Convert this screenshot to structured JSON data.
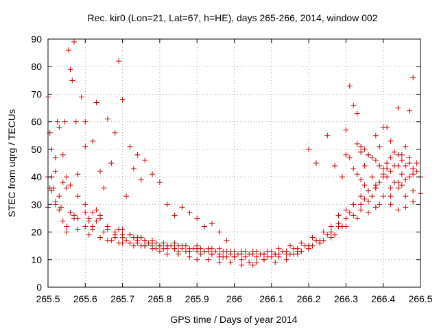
{
  "chart_data": {
    "type": "scatter",
    "title": "Rec. kir0 (Lon=21, Lat=67, h=HE), days 265-266, 2014, window 002",
    "xlabel": "GPS time / Days of year 2014",
    "ylabel": "STEC from uqrg / TECUs",
    "xlim": [
      265.5,
      266.5
    ],
    "ylim": [
      0,
      90
    ],
    "x_ticks": [
      265.5,
      265.6,
      265.7,
      265.8,
      265.9,
      266.0,
      266.1,
      266.2,
      266.3,
      266.4,
      266.5
    ],
    "x_tick_labels": [
      "265.5",
      "265.6",
      "265.7",
      "265.8",
      "265.9",
      "266",
      "266.1",
      "266.2",
      "266.3",
      "266.4",
      "266.5"
    ],
    "y_ticks": [
      0,
      10,
      20,
      30,
      40,
      50,
      60,
      70,
      80,
      90
    ],
    "y_tick_labels": [
      "0",
      "10",
      "20",
      "30",
      "40",
      "50",
      "60",
      "70",
      "80",
      "90"
    ],
    "grid": true,
    "marker": "+",
    "color": "#cc0000",
    "series": [
      {
        "name": "STEC",
        "x": [
          265.5,
          265.5,
          265.505,
          265.51,
          265.51,
          265.515,
          265.52,
          265.52,
          265.525,
          265.53,
          265.53,
          265.535,
          265.54,
          265.545,
          265.55,
          265.55,
          265.555,
          265.56,
          265.565,
          265.57,
          265.575,
          265.58,
          265.59,
          265.6,
          265.6,
          265.61,
          265.62,
          265.63,
          265.64,
          265.65,
          265.66,
          265.67,
          265.68,
          265.69,
          265.7,
          265.71,
          265.72,
          265.73,
          265.74,
          265.75,
          265.76,
          265.78,
          265.8,
          265.82,
          265.84,
          265.86,
          265.88,
          265.9,
          265.92,
          265.94,
          265.96,
          265.98,
          265.5,
          265.505,
          265.51,
          265.52,
          265.53,
          265.54,
          265.55,
          265.56,
          265.57,
          265.58,
          265.6,
          265.61,
          265.62,
          265.63,
          265.64,
          265.66,
          265.68,
          265.7,
          265.72,
          265.74,
          265.76,
          265.78,
          265.8,
          265.82,
          265.85,
          265.88,
          265.9,
          265.93,
          265.96,
          265.99,
          266.02,
          266.05,
          266.08,
          266.11,
          266.14,
          266.17,
          266.2,
          266.23,
          266.26,
          266.28,
          266.3,
          266.32,
          266.34,
          266.36,
          266.38,
          266.4,
          266.42,
          266.44,
          266.46,
          266.48,
          265.52,
          265.54,
          265.56,
          265.58,
          265.6,
          265.62,
          265.64,
          265.66,
          265.68,
          265.7,
          265.72,
          265.74,
          265.76,
          265.78,
          265.8,
          265.82,
          265.84,
          265.86,
          265.88,
          265.9,
          265.92,
          265.94,
          265.96,
          265.98,
          266.0,
          266.02,
          266.04,
          266.06,
          266.08,
          266.1,
          266.12,
          266.14,
          266.16,
          266.18,
          266.2,
          266.22,
          266.24,
          266.26,
          266.28,
          266.3,
          266.32,
          266.34,
          266.36,
          266.38,
          266.4,
          266.42,
          266.44,
          266.46,
          266.48,
          266.5,
          265.55,
          265.58,
          265.61,
          265.64,
          265.67,
          265.7,
          265.73,
          265.76,
          265.79,
          265.82,
          265.85,
          265.88,
          265.91,
          265.94,
          265.97,
          266.0,
          266.03,
          266.06,
          266.09,
          266.12,
          266.15,
          266.18,
          266.21,
          266.24,
          266.27,
          266.3,
          266.33,
          266.36,
          266.39,
          266.42,
          266.45,
          265.57,
          265.6,
          265.63,
          265.66,
          265.69,
          265.72,
          265.75,
          265.78,
          265.81,
          265.84,
          265.87,
          265.9,
          265.93,
          265.96,
          265.99,
          266.02,
          266.05,
          266.08,
          266.11,
          266.14,
          266.17,
          266.2,
          266.23,
          266.26,
          266.29,
          266.32,
          266.35,
          266.38,
          266.41,
          266.44,
          266.47,
          265.62,
          265.65,
          265.68,
          265.71,
          265.74,
          265.77,
          265.8,
          265.83,
          265.86,
          265.89,
          265.92,
          265.95,
          265.98,
          266.01,
          266.04,
          266.07,
          266.1,
          266.13,
          266.16,
          266.19,
          266.22,
          266.25,
          266.28,
          266.31,
          266.34,
          265.66,
          265.69,
          265.72,
          265.75,
          265.78,
          265.81,
          265.84,
          265.87,
          265.9,
          265.93,
          265.96,
          265.99,
          266.02,
          266.05,
          266.08,
          266.11,
          266.14,
          266.17,
          266.2,
          266.23,
          266.26,
          265.7,
          265.73,
          265.76,
          265.79,
          265.82,
          265.85,
          265.88,
          265.91,
          265.94,
          265.97,
          266.0,
          266.03,
          266.06,
          266.09,
          266.12,
          266.15,
          266.18,
          266.21,
          266.2,
          266.22,
          266.25,
          266.27,
          266.29,
          266.3,
          266.31,
          266.32,
          266.33,
          266.34,
          266.35,
          266.36,
          266.37,
          266.38,
          266.39,
          266.4,
          266.41,
          266.42,
          266.43,
          266.44,
          266.45,
          266.46,
          266.47,
          266.48,
          266.49,
          266.5,
          266.3,
          266.31,
          266.32,
          266.33,
          266.34,
          266.35,
          266.36,
          266.37,
          266.38,
          266.39,
          266.4,
          266.41,
          266.42,
          266.43,
          266.44,
          266.45,
          266.46,
          266.47,
          266.48,
          266.49,
          266.33,
          266.34,
          266.35,
          266.36,
          266.37,
          266.38,
          266.39,
          266.4,
          266.41,
          266.42,
          266.43,
          266.44,
          266.45,
          266.46,
          266.47,
          266.48
        ],
        "y": [
          69,
          40,
          56,
          50,
          40,
          36,
          47,
          30,
          60,
          58,
          33,
          29,
          48,
          60,
          40,
          36,
          86,
          79,
          75,
          89,
          60,
          41,
          69,
          60,
          51,
          25,
          53,
          67,
          42,
          36,
          61,
          45,
          56,
          82,
          68,
          33,
          51,
          43,
          48,
          39,
          46,
          41,
          38,
          30,
          26,
          29,
          27,
          25,
          22,
          23,
          20,
          17,
          29,
          36,
          35,
          31,
          28,
          24,
          22,
          27,
          26,
          25,
          22,
          24,
          21,
          28,
          26,
          21,
          19,
          18,
          16,
          17,
          15,
          14,
          13,
          12,
          12,
          11,
          10,
          10,
          9,
          9,
          8,
          8,
          10,
          9,
          10,
          12,
          14,
          16,
          20,
          22,
          25,
          30,
          28,
          31,
          29,
          33,
          30,
          28,
          29,
          31,
          42,
          38,
          37,
          33,
          30,
          27,
          25,
          22,
          20,
          21,
          19,
          18,
          17,
          16,
          15,
          15,
          14,
          15,
          13,
          14,
          13,
          12,
          11,
          11,
          11,
          10,
          9,
          9,
          10,
          11,
          12,
          13,
          12,
          13,
          15,
          17,
          20,
          22,
          26,
          28,
          30,
          33,
          35,
          37,
          40,
          36,
          38,
          33,
          35,
          34,
          20,
          21,
          19,
          18,
          17,
          16,
          15,
          15,
          14,
          14,
          13,
          13,
          12,
          12,
          11,
          11,
          11,
          11,
          11,
          11,
          12,
          13,
          15,
          17,
          19,
          22,
          25,
          27,
          30,
          33,
          37,
          25,
          27,
          24,
          22,
          21,
          19,
          18,
          17,
          16,
          16,
          15,
          15,
          14,
          14,
          13,
          13,
          13,
          12,
          12,
          12,
          13,
          14,
          16,
          18,
          22,
          26,
          32,
          36,
          40,
          44,
          47,
          22,
          20,
          18,
          17,
          16,
          16,
          15,
          15,
          14,
          14,
          13,
          13,
          13,
          12,
          12,
          12,
          13,
          13,
          14,
          15,
          17,
          19,
          23,
          27,
          30,
          17,
          16,
          16,
          15,
          15,
          14,
          14,
          13,
          13,
          13,
          12,
          12,
          12,
          12,
          12,
          12,
          13,
          14,
          15,
          17,
          20,
          19,
          18,
          17,
          16,
          15,
          15,
          14,
          14,
          14,
          13,
          13,
          13,
          13,
          13,
          14,
          15,
          16,
          18,
          50,
          45,
          55,
          44,
          40,
          57,
          73,
          66,
          63,
          49,
          44,
          48,
          40,
          55,
          51,
          58,
          58,
          53,
          44,
          65,
          48,
          51,
          64,
          76,
          45,
          40,
          48,
          47,
          43,
          41,
          39,
          37,
          35,
          33,
          36,
          38,
          41,
          43,
          42,
          38,
          36,
          41,
          39,
          40,
          43,
          42,
          52,
          51,
          50,
          48,
          47,
          46,
          44,
          43,
          45,
          47,
          49,
          48,
          46,
          44,
          45,
          41
        ]
      }
    ]
  }
}
